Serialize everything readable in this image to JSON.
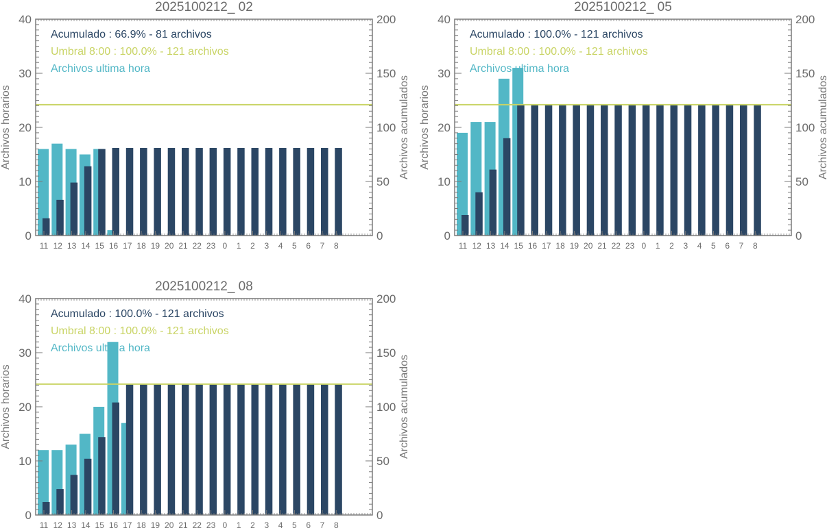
{
  "colors": {
    "hourly": "#52b7c6",
    "cumulative": "#2b4664",
    "threshold": "#c9d465",
    "axis": "#7a7a7a",
    "text": "#6b6b6b"
  },
  "chart_data": [
    {
      "type": "bar",
      "title": "2025100212_ 02",
      "ylabel": "Archivos horarios",
      "ylabel_right": "Archivos acumulados",
      "ylim": [
        0,
        40
      ],
      "ylim_right": [
        0,
        200
      ],
      "yticks": [
        0,
        10,
        20,
        30,
        40
      ],
      "yticks_right": [
        0,
        50,
        100,
        150,
        200
      ],
      "categories": [
        "11",
        "12",
        "13",
        "14",
        "15",
        "16",
        "17",
        "18",
        "19",
        "20",
        "21",
        "22",
        "23",
        "0",
        "1",
        "2",
        "3",
        "4",
        "5",
        "6",
        "7",
        "8"
      ],
      "series": [
        {
          "name": "Archivos ultima hora",
          "axis": "left",
          "values": [
            16,
            17,
            16,
            15,
            16,
            1,
            null,
            null,
            null,
            null,
            null,
            null,
            null,
            null,
            null,
            null,
            null,
            null,
            null,
            null,
            null,
            null
          ]
        },
        {
          "name": "Acumulado",
          "axis": "right",
          "values": [
            16,
            33,
            49,
            64,
            80,
            81,
            81,
            81,
            81,
            81,
            81,
            81,
            81,
            81,
            81,
            81,
            81,
            81,
            81,
            81,
            81,
            81
          ]
        }
      ],
      "threshold": {
        "name": "Umbral 8:00",
        "value": 121,
        "axis": "right"
      },
      "legend": [
        {
          "text": "Acumulado : 66.9% - 81 archivos",
          "series": "cumulative"
        },
        {
          "text": "Umbral 8:00 : 100.0% - 121 archivos",
          "series": "threshold"
        },
        {
          "text": "Archivos ultima hora",
          "series": "hourly"
        }
      ],
      "legend_position": "top-left"
    },
    {
      "type": "bar",
      "title": "2025100212_ 05",
      "ylabel": "Archivos horarios",
      "ylabel_right": "Archivos acumulados",
      "ylim": [
        0,
        40
      ],
      "ylim_right": [
        0,
        200
      ],
      "yticks": [
        0,
        10,
        20,
        30,
        40
      ],
      "yticks_right": [
        0,
        50,
        100,
        150,
        200
      ],
      "categories": [
        "11",
        "12",
        "13",
        "14",
        "15",
        "16",
        "17",
        "18",
        "19",
        "20",
        "21",
        "22",
        "23",
        "0",
        "1",
        "2",
        "3",
        "4",
        "5",
        "6",
        "7",
        "8"
      ],
      "series": [
        {
          "name": "Archivos ultima hora",
          "axis": "left",
          "values": [
            19,
            21,
            21,
            29,
            31,
            null,
            null,
            null,
            null,
            null,
            null,
            null,
            null,
            null,
            null,
            null,
            null,
            null,
            null,
            null,
            null,
            null
          ]
        },
        {
          "name": "Acumulado",
          "axis": "right",
          "values": [
            19,
            40,
            61,
            90,
            121,
            121,
            121,
            121,
            121,
            121,
            121,
            121,
            121,
            121,
            121,
            121,
            121,
            121,
            121,
            121,
            121,
            121
          ]
        }
      ],
      "threshold": {
        "name": "Umbral 8:00",
        "value": 121,
        "axis": "right"
      },
      "legend": [
        {
          "text": "Acumulado : 100.0% - 121 archivos",
          "series": "cumulative"
        },
        {
          "text": "Umbral 8:00 : 100.0% - 121 archivos",
          "series": "threshold"
        },
        {
          "text": "Archivos ultima hora",
          "series": "hourly"
        }
      ],
      "legend_position": "top-left"
    },
    {
      "type": "bar",
      "title": "2025100212_ 08",
      "ylabel": "Archivos horarios",
      "ylabel_right": "Archivos acumulados",
      "ylim": [
        0,
        40
      ],
      "ylim_right": [
        0,
        200
      ],
      "yticks": [
        0,
        10,
        20,
        30,
        40
      ],
      "yticks_right": [
        0,
        50,
        100,
        150,
        200
      ],
      "categories": [
        "11",
        "12",
        "13",
        "14",
        "15",
        "16",
        "17",
        "18",
        "19",
        "20",
        "21",
        "22",
        "23",
        "0",
        "1",
        "2",
        "3",
        "4",
        "5",
        "6",
        "7",
        "8"
      ],
      "series": [
        {
          "name": "Archivos ultima hora",
          "axis": "left",
          "values": [
            12,
            12,
            13,
            15,
            20,
            32,
            17,
            null,
            null,
            null,
            null,
            null,
            null,
            null,
            null,
            null,
            null,
            null,
            null,
            null,
            null,
            null
          ]
        },
        {
          "name": "Acumulado",
          "axis": "right",
          "values": [
            12,
            24,
            37,
            52,
            72,
            104,
            121,
            121,
            121,
            121,
            121,
            121,
            121,
            121,
            121,
            121,
            121,
            121,
            121,
            121,
            121,
            121
          ]
        }
      ],
      "threshold": {
        "name": "Umbral 8:00",
        "value": 121,
        "axis": "right"
      },
      "legend": [
        {
          "text": "Acumulado : 100.0% - 121 archivos",
          "series": "cumulative"
        },
        {
          "text": "Umbral 8:00 : 100.0% - 121 archivos",
          "series": "threshold"
        },
        {
          "text": "Archivos ultima hora",
          "series": "hourly"
        }
      ],
      "legend_position": "top-left"
    }
  ]
}
